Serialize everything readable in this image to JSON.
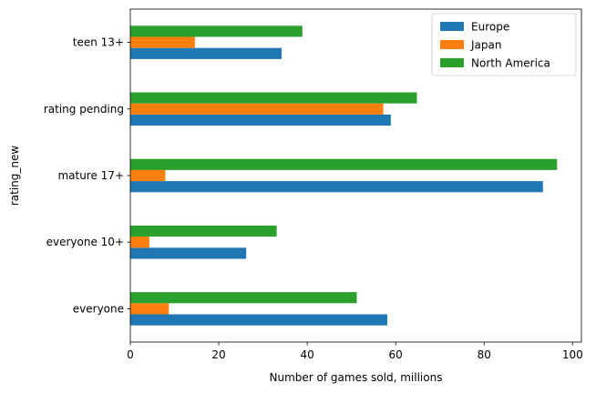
{
  "chart_data": {
    "type": "bar",
    "orientation": "horizontal",
    "title": "",
    "xlabel": "Number of games sold, millions",
    "ylabel": "rating_new",
    "xlim": [
      0,
      102
    ],
    "xticks": [
      0,
      20,
      40,
      60,
      80,
      100
    ],
    "categories": [
      "everyone",
      "everyone 10+",
      "mature 17+",
      "rating pending",
      "teen 13+"
    ],
    "series": [
      {
        "name": "Europe",
        "color": "#1f77b4",
        "values": [
          58.1,
          26.2,
          93.3,
          58.9,
          34.2
        ]
      },
      {
        "name": "Japan",
        "color": "#ff7f0e",
        "values": [
          8.7,
          4.3,
          7.9,
          57.2,
          14.6
        ]
      },
      {
        "name": "North America",
        "color": "#2ca02c",
        "values": [
          51.2,
          33.1,
          96.5,
          64.8,
          38.9
        ]
      }
    ],
    "legend": {
      "position": "top-right"
    },
    "grid": false
  }
}
